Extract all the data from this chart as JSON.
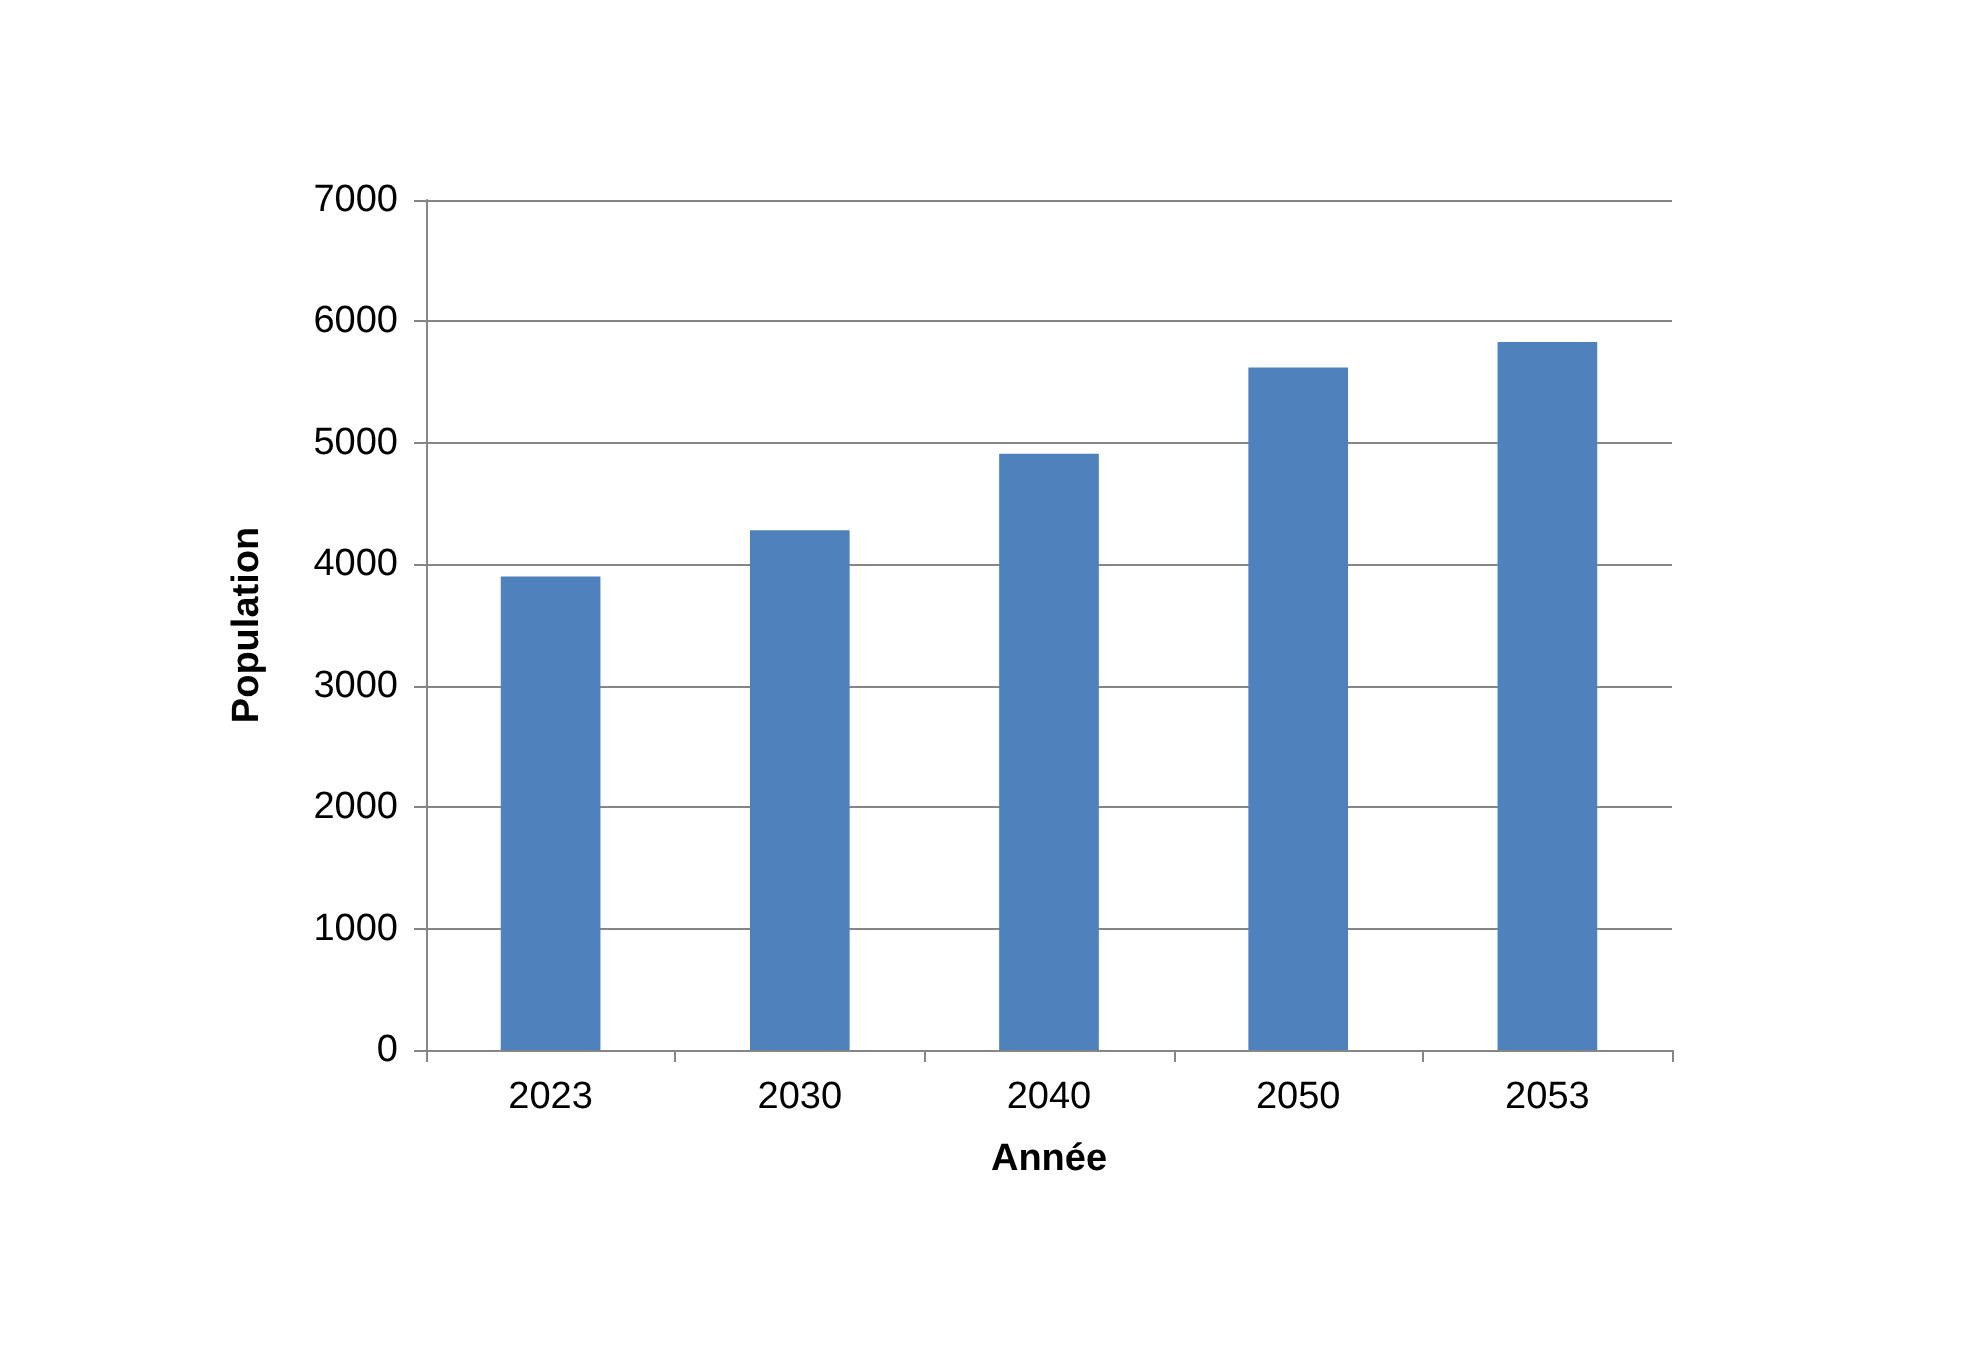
{
  "chart_data": {
    "type": "bar",
    "xlabel": "Année",
    "ylabel": "Population",
    "categories": [
      "2023",
      "2030",
      "2040",
      "2050",
      "2053"
    ],
    "values": [
      3900,
      4280,
      4910,
      5620,
      5830
    ],
    "color": "#4f81bd",
    "ylim": [
      0,
      7000
    ],
    "yticks": [
      0,
      1000,
      2000,
      3000,
      4000,
      5000,
      6000,
      7000
    ],
    "grid": "y"
  }
}
